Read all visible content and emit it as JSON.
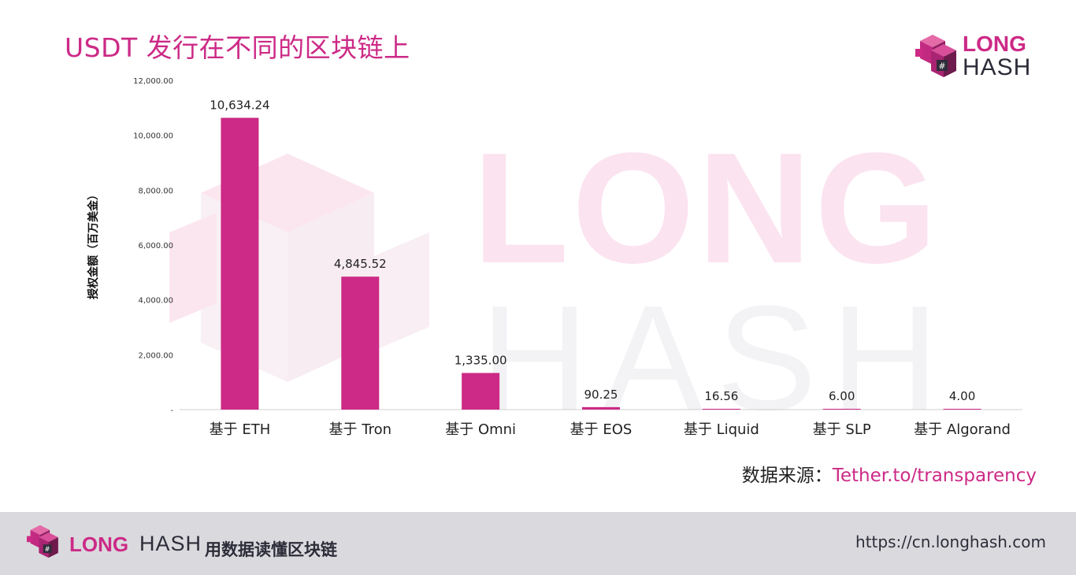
{
  "title": "USDT 发行在不同的区块链上",
  "brand": {
    "word1": "LONG",
    "word2": "HASH"
  },
  "watermark": {
    "line1": "LONG",
    "line2": "HASH"
  },
  "colors": {
    "accent": "#cc2a86",
    "text": "#2d2d3a",
    "footer_bg": "#dadade"
  },
  "chart_data": {
    "type": "bar",
    "title": "",
    "xlabel": "",
    "ylabel": "授权金额（百万美金）",
    "categories": [
      "基于 ETH",
      "基于 Tron",
      "基于 Omni",
      "基于 EOS",
      "基于 Liquid",
      "基于 SLP",
      "基于 Algorand"
    ],
    "values": [
      10634.24,
      4845.52,
      1335.0,
      90.25,
      16.56,
      6.0,
      4.0
    ],
    "value_labels": [
      "10,634.24",
      "4,845.52",
      "1,335.00",
      "90.25",
      "16.56",
      "6.00",
      "4.00"
    ],
    "ylim": [
      0,
      12000
    ],
    "yticks": [
      0,
      2000,
      4000,
      6000,
      8000,
      10000,
      12000
    ],
    "ytick_labels": [
      "-",
      "2,000.00",
      "4,000.00",
      "6,000.00",
      "8,000.00",
      "10,000.00",
      "12,000.00"
    ],
    "bar_color": "#cc2a86",
    "grid": false,
    "legend": "none"
  },
  "source": {
    "label": "数据来源：",
    "link": "Tether.to/transparency"
  },
  "footer": {
    "slogan": "用数据读懂区块链",
    "url": "https://cn.longhash.com"
  }
}
